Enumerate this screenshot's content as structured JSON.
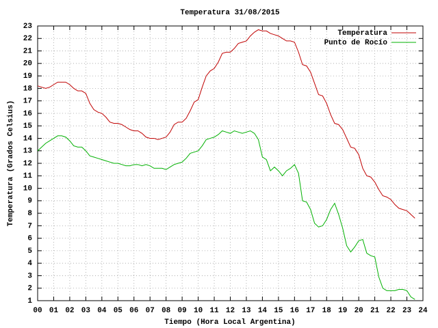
{
  "chart_data": {
    "type": "line",
    "title": "Temperatura 31/08/2015",
    "x_label": "Tiempo (Hora Local Argentina)",
    "y_label": "Temperatura (Grados Celsius)",
    "x": [
      0,
      0.25,
      0.5,
      0.75,
      1,
      1.25,
      1.5,
      1.75,
      2,
      2.25,
      2.5,
      2.75,
      3,
      3.25,
      3.5,
      3.75,
      4,
      4.25,
      4.5,
      4.75,
      5,
      5.25,
      5.5,
      5.75,
      6,
      6.25,
      6.5,
      6.75,
      7,
      7.25,
      7.5,
      7.75,
      8,
      8.25,
      8.5,
      8.75,
      9,
      9.25,
      9.5,
      9.75,
      10,
      10.25,
      10.5,
      10.75,
      11,
      11.25,
      11.5,
      11.75,
      12,
      12.25,
      12.5,
      12.75,
      13,
      13.25,
      13.5,
      13.75,
      14,
      14.25,
      14.5,
      14.75,
      15,
      15.25,
      15.5,
      15.75,
      16,
      16.25,
      16.5,
      16.75,
      17,
      17.25,
      17.5,
      17.75,
      18,
      18.25,
      18.5,
      18.75,
      19,
      19.25,
      19.5,
      19.75,
      20,
      20.25,
      20.5,
      20.75,
      21,
      21.25,
      21.5,
      21.75,
      22,
      22.25,
      22.5,
      22.75,
      23,
      23.25,
      23.5
    ],
    "series": [
      {
        "name": "Temperatura",
        "color": "#c00000",
        "values": [
          18.2,
          18.1,
          18.0,
          18.1,
          18.3,
          18.5,
          18.5,
          18.5,
          18.3,
          18.0,
          17.8,
          17.8,
          17.6,
          16.8,
          16.3,
          16.1,
          16.0,
          15.7,
          15.3,
          15.2,
          15.2,
          15.1,
          14.9,
          14.7,
          14.6,
          14.6,
          14.4,
          14.1,
          14.0,
          14.0,
          13.9,
          14.0,
          14.1,
          14.5,
          15.1,
          15.3,
          15.3,
          15.6,
          16.2,
          16.9,
          17.1,
          18.1,
          19.0,
          19.4,
          19.6,
          20.1,
          20.8,
          20.9,
          20.9,
          21.2,
          21.6,
          21.7,
          21.8,
          22.2,
          22.5,
          22.7,
          22.6,
          22.6,
          22.4,
          22.3,
          22.2,
          22.0,
          21.8,
          21.8,
          21.7,
          20.9,
          19.9,
          19.8,
          19.3,
          18.4,
          17.5,
          17.4,
          16.8,
          15.9,
          15.2,
          15.1,
          14.7,
          14.0,
          13.3,
          13.2,
          12.7,
          11.6,
          11.0,
          10.9,
          10.5,
          9.9,
          9.4,
          9.3,
          9.1,
          8.7,
          8.4,
          8.3,
          8.2,
          7.9,
          7.6
        ]
      },
      {
        "name": "Punto de Rocío",
        "color": "#00b000",
        "values": [
          13.0,
          13.3,
          13.6,
          13.8,
          14.0,
          14.2,
          14.2,
          14.1,
          13.8,
          13.4,
          13.3,
          13.3,
          13.0,
          12.6,
          12.5,
          12.4,
          12.3,
          12.2,
          12.1,
          12.0,
          12.0,
          11.9,
          11.8,
          11.8,
          11.9,
          11.9,
          11.8,
          11.9,
          11.8,
          11.6,
          11.6,
          11.6,
          11.5,
          11.7,
          11.9,
          12.0,
          12.1,
          12.4,
          12.8,
          12.9,
          13.0,
          13.4,
          13.9,
          14.0,
          14.1,
          14.3,
          14.6,
          14.5,
          14.4,
          14.6,
          14.5,
          14.4,
          14.5,
          14.6,
          14.4,
          13.9,
          12.5,
          12.3,
          11.4,
          11.7,
          11.4,
          11.0,
          11.4,
          11.6,
          11.9,
          11.2,
          9.0,
          8.9,
          8.3,
          7.2,
          6.9,
          7.0,
          7.5,
          8.3,
          8.8,
          7.9,
          6.8,
          5.4,
          4.9,
          5.3,
          5.8,
          5.9,
          4.8,
          4.6,
          4.5,
          2.9,
          2.0,
          1.8,
          1.8,
          1.8,
          1.9,
          1.9,
          1.8,
          1.3,
          1.1
        ]
      }
    ],
    "xlim": [
      0,
      24
    ],
    "xticks": [
      {
        "value": 0,
        "label": "00"
      },
      {
        "value": 1,
        "label": "01"
      },
      {
        "value": 2,
        "label": "02"
      },
      {
        "value": 3,
        "label": "03"
      },
      {
        "value": 4,
        "label": "04"
      },
      {
        "value": 5,
        "label": "05"
      },
      {
        "value": 6,
        "label": "06"
      },
      {
        "value": 7,
        "label": "07"
      },
      {
        "value": 8,
        "label": "08"
      },
      {
        "value": 9,
        "label": "09"
      },
      10,
      11,
      12,
      13,
      14,
      15,
      16,
      17,
      18,
      19,
      20,
      21,
      22,
      23,
      24
    ],
    "ylim": [
      1,
      23
    ],
    "yticks": [
      1,
      2,
      3,
      4,
      5,
      6,
      7,
      8,
      9,
      10,
      11,
      12,
      13,
      14,
      15,
      16,
      17,
      18,
      19,
      20,
      21,
      22,
      23
    ],
    "grid": true,
    "legend": "top-right"
  }
}
